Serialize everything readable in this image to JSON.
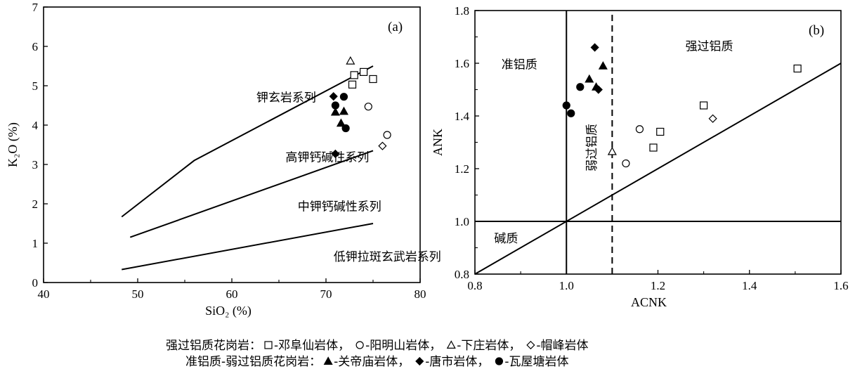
{
  "chart_data": [
    {
      "type": "scatter",
      "panel_label": "(a)",
      "xlabel": "SiO₂ (%)",
      "ylabel": "K₂O (%)",
      "xlim": [
        40,
        80
      ],
      "ylim": [
        0,
        7
      ],
      "x_ticks": [
        "40",
        "50",
        "60",
        "70",
        "80"
      ],
      "y_ticks": [
        "0",
        "1",
        "2",
        "3",
        "4",
        "5",
        "6",
        "7"
      ],
      "x_tick_values": [
        40,
        50,
        60,
        70,
        80
      ],
      "y_tick_values": [
        0,
        1,
        2,
        3,
        4,
        5,
        6,
        7
      ],
      "x_minor_values": [
        45,
        55,
        65,
        75
      ],
      "boundaries": [
        {
          "points": [
            [
              48.3,
              1.67
            ],
            [
              56,
              3.1
            ],
            [
              75,
              5.5
            ]
          ]
        },
        {
          "points": [
            [
              49.2,
              1.15
            ],
            [
              75,
              3.35
            ]
          ]
        },
        {
          "points": [
            [
              48.3,
              0.33
            ],
            [
              75,
              1.5
            ]
          ]
        }
      ],
      "region_labels": [
        {
          "text": "钾玄岩系列",
          "x": 62.6,
          "y": 4.6
        },
        {
          "text": "高钾钙碱性系列",
          "x": 65.7,
          "y": 3.08
        },
        {
          "text": "中钾钙碱性系列",
          "x": 67,
          "y": 1.83
        },
        {
          "text": "低钾拉斑玄武岩系列",
          "x": 70.8,
          "y": 0.55
        }
      ],
      "series": [
        {
          "name": "邓阜仙岩体",
          "marker": "square-open",
          "points": [
            [
              73,
              5.27
            ],
            [
              74,
              5.35
            ],
            [
              75,
              5.17
            ],
            [
              72.8,
              5.03
            ]
          ]
        },
        {
          "name": "阳明山岩体",
          "marker": "circle-open",
          "points": [
            [
              74.5,
              4.47
            ],
            [
              76.5,
              3.75
            ]
          ]
        },
        {
          "name": "下庄岩体",
          "marker": "triangle-open",
          "points": [
            [
              72.6,
              5.63
            ]
          ]
        },
        {
          "name": "帽峰岩体",
          "marker": "diamond-open",
          "points": [
            [
              76,
              3.47
            ]
          ]
        },
        {
          "name": "关帝庙岩体",
          "marker": "triangle-filled",
          "points": [
            [
              71,
              4.33
            ],
            [
              71.9,
              4.35
            ],
            [
              71.6,
              4.05
            ]
          ]
        },
        {
          "name": "唐市岩体",
          "marker": "diamond-filled",
          "points": [
            [
              70.8,
              4.73
            ],
            [
              71,
              3.27
            ]
          ]
        },
        {
          "name": "瓦屋塘岩体",
          "marker": "circle-filled",
          "points": [
            [
              71.9,
              4.72
            ],
            [
              71,
              4.5
            ],
            [
              72.1,
              3.92
            ]
          ]
        }
      ]
    },
    {
      "type": "scatter",
      "panel_label": "(b)",
      "xlabel": "ACNK",
      "ylabel": "ANK",
      "xlim": [
        0.8,
        1.6
      ],
      "ylim": [
        0.8,
        1.8
      ],
      "x_ticks": [
        "0.8",
        "1.0",
        "1.2",
        "1.4",
        "1.6"
      ],
      "y_ticks": [
        "0.8",
        "1.0",
        "1.2",
        "1.4",
        "1.6",
        "1.8"
      ],
      "x_tick_values": [
        0.8,
        1.0,
        1.2,
        1.4,
        1.6
      ],
      "y_tick_values": [
        0.8,
        1.0,
        1.2,
        1.4,
        1.6,
        1.8
      ],
      "x_minor_values": [
        0.9,
        1.1,
        1.3,
        1.5
      ],
      "y_minor_values": [
        0.9,
        1.1,
        1.3,
        1.5,
        1.7
      ],
      "boundaries": [
        {
          "points": [
            [
              1.0,
              0.8
            ],
            [
              1.0,
              1.8
            ]
          ],
          "style": "solid"
        },
        {
          "points": [
            [
              0.8,
              1.0
            ],
            [
              1.6,
              1.0
            ]
          ],
          "style": "solid"
        },
        {
          "points": [
            [
              0.8,
              0.8
            ],
            [
              1.6,
              1.6
            ]
          ],
          "style": "solid"
        },
        {
          "points": [
            [
              1.1,
              0.8
            ],
            [
              1.1,
              1.8
            ]
          ],
          "style": "dashed"
        }
      ],
      "region_labels": [
        {
          "text": "准铝质",
          "x": 0.858,
          "y": 1.58,
          "rotate": false
        },
        {
          "text": "强过铝质",
          "x": 1.26,
          "y": 1.65,
          "rotate": false
        },
        {
          "text": "弱过铝质",
          "x": 1.064,
          "y": 1.28,
          "rotate": true
        },
        {
          "text": "碱质",
          "x": 0.842,
          "y": 0.92,
          "rotate": false
        }
      ],
      "series": [
        {
          "name": "邓阜仙岩体",
          "marker": "square-open",
          "points": [
            [
              1.505,
              1.58
            ],
            [
              1.3,
              1.44
            ],
            [
              1.205,
              1.34
            ],
            [
              1.19,
              1.28
            ]
          ]
        },
        {
          "name": "阳明山岩体",
          "marker": "circle-open",
          "points": [
            [
              1.16,
              1.35
            ],
            [
              1.13,
              1.22
            ]
          ]
        },
        {
          "name": "下庄岩体",
          "marker": "triangle-open",
          "points": [
            [
              1.1,
              1.265
            ]
          ]
        },
        {
          "name": "帽峰岩体",
          "marker": "diamond-open",
          "points": [
            [
              1.32,
              1.39
            ]
          ]
        },
        {
          "name": "关帝庙岩体",
          "marker": "triangle-filled",
          "points": [
            [
              1.08,
              1.59
            ],
            [
              1.05,
              1.54
            ],
            [
              1.065,
              1.51
            ]
          ]
        },
        {
          "name": "唐市岩体",
          "marker": "diamond-filled",
          "points": [
            [
              1.062,
              1.66
            ],
            [
              1.07,
              1.5
            ]
          ]
        },
        {
          "name": "瓦屋塘岩体",
          "marker": "circle-filled",
          "points": [
            [
              1.0,
              1.44
            ],
            [
              1.01,
              1.41
            ],
            [
              1.03,
              1.51
            ]
          ]
        }
      ]
    }
  ],
  "legend": {
    "line1_prefix": "强过铝质花岗岩：",
    "line1_items": [
      {
        "marker": "square-open",
        "label": "-邓阜仙岩体，"
      },
      {
        "marker": "circle-open",
        "label": "-阳明山岩体，"
      },
      {
        "marker": "triangle-open",
        "label": "-下庄岩体，"
      },
      {
        "marker": "diamond-open",
        "label": "-帽峰岩体"
      }
    ],
    "line2_prefix": "准铝质-弱过铝质花岗岩：",
    "line2_items": [
      {
        "marker": "triangle-filled",
        "label": "-关帝庙岩体，"
      },
      {
        "marker": "diamond-filled",
        "label": "-唐市岩体，"
      },
      {
        "marker": "circle-filled",
        "label": "-瓦屋塘岩体"
      }
    ]
  }
}
